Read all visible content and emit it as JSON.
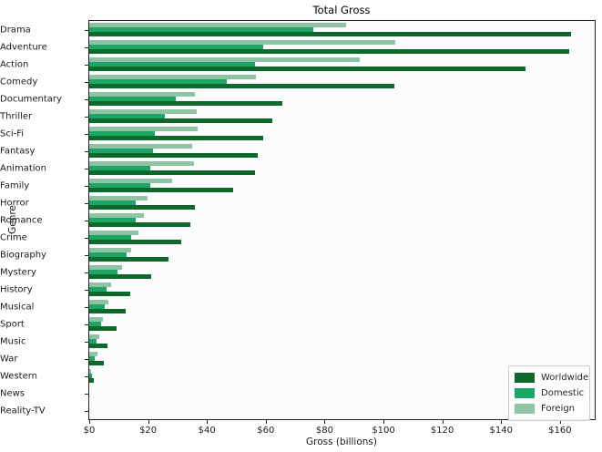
{
  "title": "Total Gross",
  "chart_data": {
    "type": "bar",
    "orientation": "horizontal",
    "title": "Total Gross",
    "xlabel": "Gross (billions)",
    "ylabel": "Genre",
    "grid": false,
    "legend_position": "lower right",
    "bar_order_top_to_bottom": [
      "Foreign",
      "Domestic",
      "Worldwide"
    ],
    "xlim": [
      0,
      171.8
    ],
    "xtick_values": [
      0,
      20,
      40,
      60,
      80,
      100,
      120,
      140,
      160
    ],
    "xtick_labels": [
      "$0",
      "$20",
      "$40",
      "$60",
      "$80",
      "$100",
      "$120",
      "$140",
      "$160"
    ],
    "categories": [
      "Drama",
      "Adventure",
      "Action",
      "Comedy",
      "Documentary",
      "Thriller",
      "Sci-Fi",
      "Fantasy",
      "Animation",
      "Family",
      "Horror",
      "Romance",
      "Crime",
      "Biography",
      "Mystery",
      "History",
      "Musical",
      "Sport",
      "Music",
      "War",
      "Western",
      "News",
      "Reality-TV"
    ],
    "series": [
      {
        "name": "Worldwide",
        "color": "#0d682c",
        "values": [
          163.6,
          163.0,
          148.4,
          103.6,
          65.6,
          62.3,
          59.0,
          57.3,
          56.4,
          48.8,
          35.8,
          34.5,
          31.2,
          26.9,
          21.0,
          14.0,
          12.3,
          9.2,
          6.2,
          5.0,
          1.4,
          0,
          0
        ]
      },
      {
        "name": "Domestic",
        "color": "#1fa565",
        "values": [
          76.0,
          59.0,
          56.2,
          46.6,
          29.4,
          25.6,
          22.3,
          21.8,
          20.7,
          20.6,
          15.8,
          15.8,
          14.3,
          12.7,
          9.6,
          5.9,
          5.3,
          4.1,
          2.6,
          1.8,
          0.8,
          0,
          0
        ]
      },
      {
        "name": "Foreign",
        "color": "#8fc3a4",
        "values": [
          87.4,
          104.1,
          92.0,
          56.7,
          35.8,
          36.6,
          36.9,
          34.9,
          35.5,
          28.1,
          19.9,
          18.7,
          16.8,
          14.1,
          11.0,
          7.5,
          6.6,
          4.7,
          3.3,
          2.9,
          0.6,
          0,
          0
        ]
      }
    ]
  }
}
